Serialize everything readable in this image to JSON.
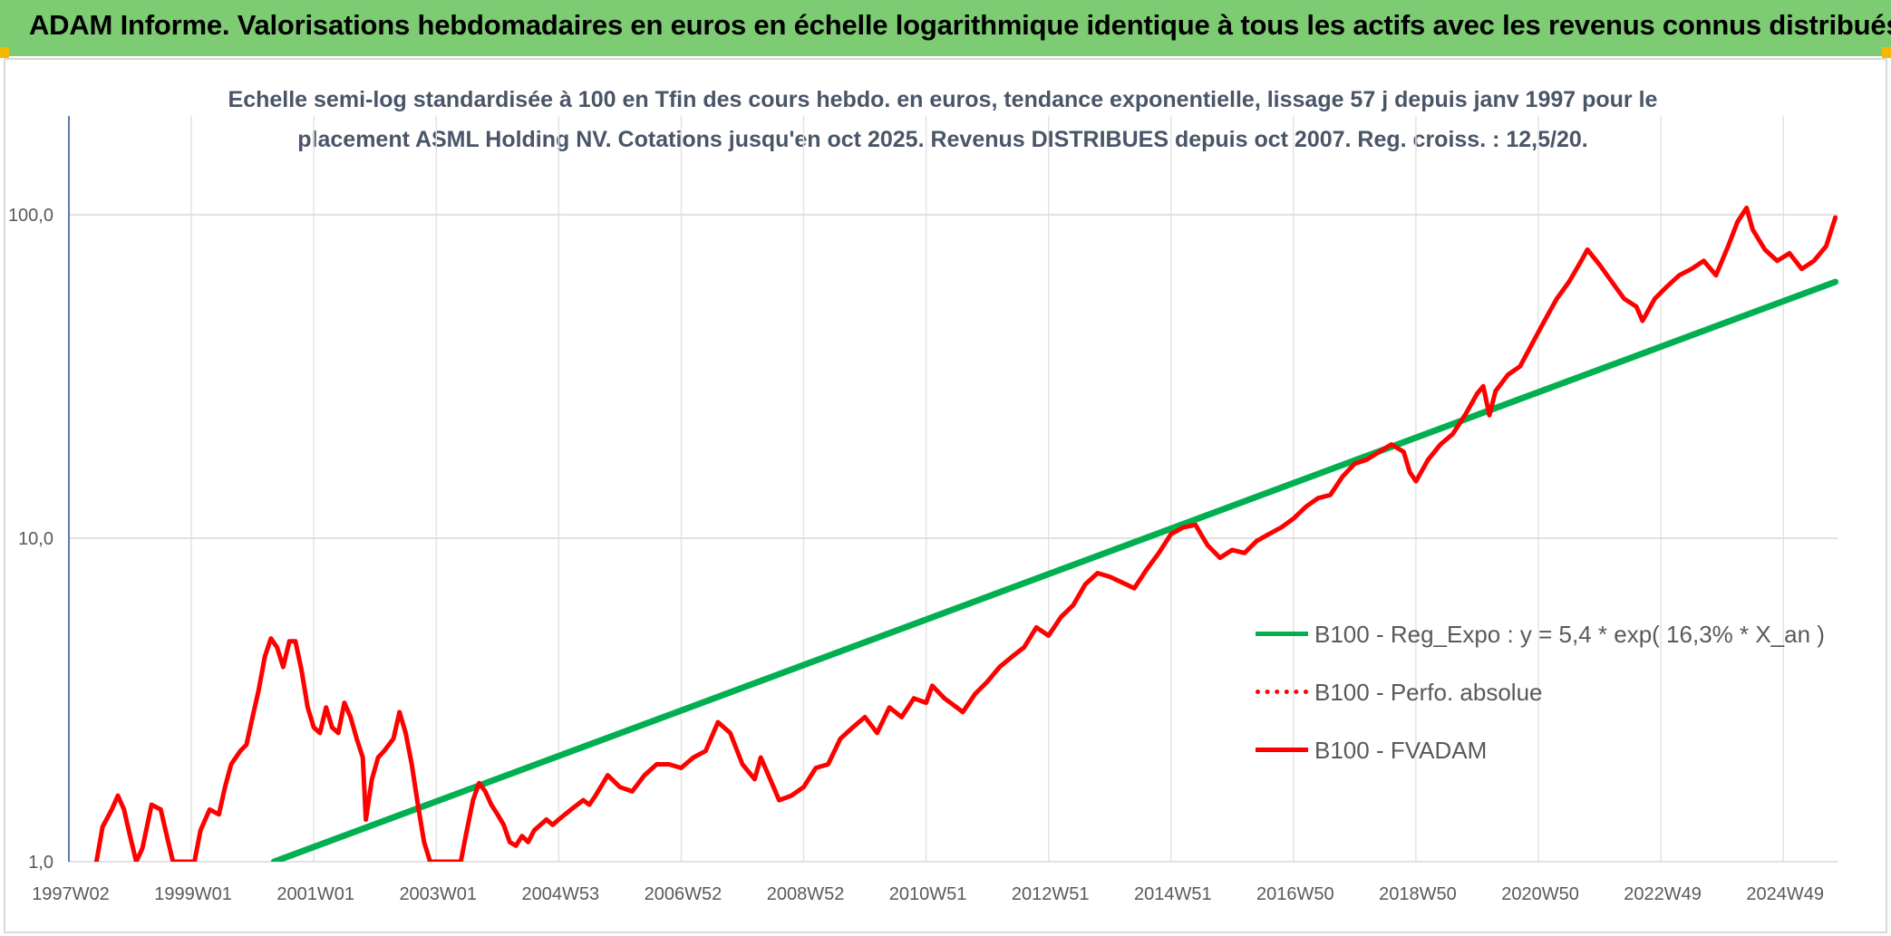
{
  "header": {
    "title": "ADAM Informe. Valorisations hebdomadaires en euros en échelle logarithmique identique à tous les actifs avec les revenus connus distribués"
  },
  "colors": {
    "header_bg": "#7dcb72",
    "trend": "#00b050",
    "series": "#ff0000",
    "corner": "#f5b800"
  },
  "chart_data": {
    "type": "line",
    "title_lines": [
      "Echelle semi-log standardisée à 100 en Tfin des cours hebdo. en euros, tendance exponentielle, lissage 57 j depuis janv 1997 pour le",
      "placement ASML Holding NV. Cotations jusqu'en oct 2025. Revenus DISTRIBUES depuis oct 2007. Reg. croiss. : 12,5/20."
    ],
    "y_scale": "log",
    "ylim": [
      1,
      100
    ],
    "xlim": [
      1997.0,
      2025.9
    ],
    "y_ticks": [
      {
        "value": 1,
        "label": "1,0"
      },
      {
        "value": 10,
        "label": "10,0"
      },
      {
        "value": 100,
        "label": "100,0"
      }
    ],
    "x_ticks": [
      {
        "value": 1997.0,
        "label": "1997W02"
      },
      {
        "value": 1999.0,
        "label": "1999W01"
      },
      {
        "value": 2001.0,
        "label": "2001W01"
      },
      {
        "value": 2003.0,
        "label": "2003W01"
      },
      {
        "value": 2005.0,
        "label": "2004W53"
      },
      {
        "value": 2007.0,
        "label": "2006W52"
      },
      {
        "value": 2009.0,
        "label": "2008W52"
      },
      {
        "value": 2011.0,
        "label": "2010W51"
      },
      {
        "value": 2013.0,
        "label": "2012W51"
      },
      {
        "value": 2015.0,
        "label": "2014W51"
      },
      {
        "value": 2017.0,
        "label": "2016W50"
      },
      {
        "value": 2019.0,
        "label": "2018W50"
      },
      {
        "value": 2021.0,
        "label": "2020W50"
      },
      {
        "value": 2023.0,
        "label": "2022W49"
      },
      {
        "value": 2025.0,
        "label": "2024W49"
      }
    ],
    "grid": true,
    "legend_position": "right",
    "legend": [
      {
        "label": "B100 - Reg_Expo : y = 5,4 * exp( 16,3% * X_an )",
        "style": "solid-green"
      },
      {
        "label": "B100 - Perfo. absolue",
        "style": "dotted-red"
      },
      {
        "label": "B100 - FVADAM",
        "style": "solid-red"
      }
    ],
    "series": [
      {
        "name": "B100 - Reg_Expo : y = 5,4 * exp( 16,3% * X_an )",
        "color": "#00b050",
        "points": [
          [
            2000.35,
            1.0
          ],
          [
            2025.85,
            62
          ]
        ]
      },
      {
        "name": "B100 - FVADAM",
        "color": "#ff0000",
        "points": [
          [
            1997.45,
            1.0
          ],
          [
            1997.55,
            1.28
          ],
          [
            1997.7,
            1.45
          ],
          [
            1997.8,
            1.6
          ],
          [
            1997.9,
            1.45
          ],
          [
            1998.0,
            1.2
          ],
          [
            1998.1,
            1.0
          ],
          [
            1998.2,
            1.1
          ],
          [
            1998.35,
            1.5
          ],
          [
            1998.5,
            1.45
          ],
          [
            1998.6,
            1.2
          ],
          [
            1998.7,
            1.0
          ],
          [
            1999.05,
            1.0
          ],
          [
            1999.15,
            1.25
          ],
          [
            1999.3,
            1.45
          ],
          [
            1999.45,
            1.4
          ],
          [
            1999.55,
            1.7
          ],
          [
            1999.65,
            2.0
          ],
          [
            1999.8,
            2.2
          ],
          [
            1999.9,
            2.3
          ],
          [
            2000.0,
            2.8
          ],
          [
            2000.1,
            3.4
          ],
          [
            2000.2,
            4.3
          ],
          [
            2000.3,
            4.9
          ],
          [
            2000.4,
            4.6
          ],
          [
            2000.5,
            4.0
          ],
          [
            2000.6,
            4.8
          ],
          [
            2000.7,
            4.8
          ],
          [
            2000.8,
            3.9
          ],
          [
            2000.9,
            3.0
          ],
          [
            2001.0,
            2.6
          ],
          [
            2001.1,
            2.5
          ],
          [
            2001.2,
            3.0
          ],
          [
            2001.3,
            2.6
          ],
          [
            2001.4,
            2.5
          ],
          [
            2001.5,
            3.1
          ],
          [
            2001.6,
            2.8
          ],
          [
            2001.7,
            2.4
          ],
          [
            2001.8,
            2.1
          ],
          [
            2001.85,
            1.35
          ],
          [
            2001.95,
            1.8
          ],
          [
            2002.05,
            2.1
          ],
          [
            2002.15,
            2.2
          ],
          [
            2002.3,
            2.4
          ],
          [
            2002.4,
            2.9
          ],
          [
            2002.5,
            2.5
          ],
          [
            2002.6,
            2.0
          ],
          [
            2002.7,
            1.5
          ],
          [
            2002.8,
            1.15
          ],
          [
            2002.9,
            1.0
          ],
          [
            2003.4,
            1.0
          ],
          [
            2003.5,
            1.25
          ],
          [
            2003.6,
            1.55
          ],
          [
            2003.7,
            1.75
          ],
          [
            2003.8,
            1.65
          ],
          [
            2003.9,
            1.5
          ],
          [
            2004.0,
            1.4
          ],
          [
            2004.1,
            1.3
          ],
          [
            2004.2,
            1.15
          ],
          [
            2004.3,
            1.12
          ],
          [
            2004.4,
            1.2
          ],
          [
            2004.5,
            1.15
          ],
          [
            2004.6,
            1.25
          ],
          [
            2004.8,
            1.35
          ],
          [
            2004.9,
            1.3
          ],
          [
            2005.0,
            1.35
          ],
          [
            2005.2,
            1.45
          ],
          [
            2005.4,
            1.55
          ],
          [
            2005.5,
            1.5
          ],
          [
            2005.6,
            1.6
          ],
          [
            2005.8,
            1.85
          ],
          [
            2006.0,
            1.7
          ],
          [
            2006.2,
            1.65
          ],
          [
            2006.4,
            1.85
          ],
          [
            2006.6,
            2.0
          ],
          [
            2006.8,
            2.0
          ],
          [
            2007.0,
            1.95
          ],
          [
            2007.2,
            2.1
          ],
          [
            2007.4,
            2.2
          ],
          [
            2007.6,
            2.7
          ],
          [
            2007.8,
            2.5
          ],
          [
            2008.0,
            2.0
          ],
          [
            2008.2,
            1.8
          ],
          [
            2008.3,
            2.1
          ],
          [
            2008.4,
            1.9
          ],
          [
            2008.6,
            1.55
          ],
          [
            2008.8,
            1.6
          ],
          [
            2009.0,
            1.7
          ],
          [
            2009.2,
            1.95
          ],
          [
            2009.4,
            2.0
          ],
          [
            2009.6,
            2.4
          ],
          [
            2009.8,
            2.6
          ],
          [
            2010.0,
            2.8
          ],
          [
            2010.2,
            2.5
          ],
          [
            2010.4,
            3.0
          ],
          [
            2010.6,
            2.8
          ],
          [
            2010.8,
            3.2
          ],
          [
            2011.0,
            3.1
          ],
          [
            2011.1,
            3.5
          ],
          [
            2011.3,
            3.2
          ],
          [
            2011.5,
            3.0
          ],
          [
            2011.6,
            2.9
          ],
          [
            2011.8,
            3.3
          ],
          [
            2012.0,
            3.6
          ],
          [
            2012.2,
            4.0
          ],
          [
            2012.4,
            4.3
          ],
          [
            2012.6,
            4.6
          ],
          [
            2012.8,
            5.3
          ],
          [
            2013.0,
            5.0
          ],
          [
            2013.2,
            5.7
          ],
          [
            2013.4,
            6.2
          ],
          [
            2013.6,
            7.2
          ],
          [
            2013.8,
            7.8
          ],
          [
            2014.0,
            7.6
          ],
          [
            2014.2,
            7.3
          ],
          [
            2014.4,
            7.0
          ],
          [
            2014.6,
            8.0
          ],
          [
            2014.8,
            9.0
          ],
          [
            2015.0,
            10.3
          ],
          [
            2015.2,
            10.8
          ],
          [
            2015.4,
            11.0
          ],
          [
            2015.5,
            10.2
          ],
          [
            2015.6,
            9.5
          ],
          [
            2015.8,
            8.7
          ],
          [
            2016.0,
            9.2
          ],
          [
            2016.2,
            9.0
          ],
          [
            2016.4,
            9.8
          ],
          [
            2016.6,
            10.3
          ],
          [
            2016.8,
            10.8
          ],
          [
            2017.0,
            11.5
          ],
          [
            2017.2,
            12.5
          ],
          [
            2017.4,
            13.3
          ],
          [
            2017.6,
            13.6
          ],
          [
            2017.8,
            15.5
          ],
          [
            2018.0,
            17.0
          ],
          [
            2018.2,
            17.5
          ],
          [
            2018.4,
            18.5
          ],
          [
            2018.6,
            19.5
          ],
          [
            2018.8,
            18.5
          ],
          [
            2018.9,
            16.0
          ],
          [
            2019.0,
            15.0
          ],
          [
            2019.2,
            17.5
          ],
          [
            2019.4,
            19.5
          ],
          [
            2019.6,
            21.0
          ],
          [
            2019.8,
            24.0
          ],
          [
            2020.0,
            28.0
          ],
          [
            2020.1,
            29.5
          ],
          [
            2020.2,
            24.0
          ],
          [
            2020.3,
            28.5
          ],
          [
            2020.5,
            32.0
          ],
          [
            2020.7,
            34.0
          ],
          [
            2020.9,
            40.0
          ],
          [
            2021.1,
            47.0
          ],
          [
            2021.3,
            55.0
          ],
          [
            2021.5,
            62.0
          ],
          [
            2021.7,
            72.0
          ],
          [
            2021.8,
            78.0
          ],
          [
            2022.0,
            70.0
          ],
          [
            2022.2,
            62.0
          ],
          [
            2022.4,
            55.0
          ],
          [
            2022.6,
            52.0
          ],
          [
            2022.7,
            47.0
          ],
          [
            2022.9,
            55.0
          ],
          [
            2023.1,
            60.0
          ],
          [
            2023.3,
            65.0
          ],
          [
            2023.5,
            68.0
          ],
          [
            2023.7,
            72.0
          ],
          [
            2023.9,
            65.0
          ],
          [
            2024.1,
            80.0
          ],
          [
            2024.25,
            95.0
          ],
          [
            2024.4,
            105.0
          ],
          [
            2024.5,
            90.0
          ],
          [
            2024.7,
            78.0
          ],
          [
            2024.9,
            72.0
          ],
          [
            2025.1,
            76.0
          ],
          [
            2025.3,
            68.0
          ],
          [
            2025.5,
            72.0
          ],
          [
            2025.7,
            80.0
          ],
          [
            2025.85,
            98.0
          ]
        ]
      }
    ]
  }
}
